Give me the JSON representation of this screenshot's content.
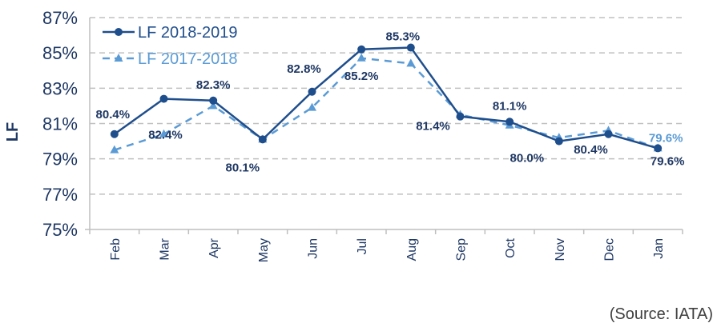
{
  "chart_data": {
    "type": "line",
    "title": "",
    "xlabel": "",
    "ylabel": "LF",
    "ylim": [
      75,
      87
    ],
    "yticks": [
      75,
      77,
      79,
      81,
      83,
      85,
      87
    ],
    "ytick_labels": [
      "75%",
      "77%",
      "79%",
      "81%",
      "83%",
      "85%",
      "87%"
    ],
    "grid": true,
    "legend_position": "top-left",
    "categories": [
      "Feb",
      "Mar",
      "Apr",
      "May",
      "Jun",
      "Jul",
      "Aug",
      "Sep",
      "Oct",
      "Nov",
      "Dec",
      "Jan"
    ],
    "series": [
      {
        "name": "LF 2018-2019",
        "color": "#1f4e8c",
        "style": "solid",
        "marker": "circle",
        "values": [
          80.4,
          82.4,
          82.3,
          80.1,
          82.8,
          85.2,
          85.3,
          81.4,
          81.1,
          80.0,
          80.4,
          79.6
        ]
      },
      {
        "name": "LF 2017-2018",
        "color": "#5b9bd5",
        "style": "dashed",
        "marker": "triangle",
        "values": [
          79.5,
          80.4,
          82.0,
          80.1,
          81.9,
          84.7,
          84.4,
          81.5,
          80.9,
          80.2,
          80.6,
          79.6
        ]
      }
    ],
    "annotations": [
      {
        "text": "80.4%",
        "category": "Feb",
        "series": "LF 2018-2019"
      },
      {
        "text": "82.4%",
        "category": "Mar",
        "series": "LF 2018-2019"
      },
      {
        "text": "82.3%",
        "category": "Apr",
        "series": "LF 2018-2019"
      },
      {
        "text": "80.1%",
        "category": "May",
        "series": "LF 2018-2019"
      },
      {
        "text": "82.8%",
        "category": "Jun",
        "series": "LF 2018-2019"
      },
      {
        "text": "85.2%",
        "category": "Jul",
        "series": "LF 2018-2019"
      },
      {
        "text": "85.3%",
        "category": "Aug",
        "series": "LF 2018-2019"
      },
      {
        "text": "81.4%",
        "category": "Sep",
        "series": "LF 2018-2019"
      },
      {
        "text": "81.1%",
        "category": "Oct",
        "series": "LF 2018-2019"
      },
      {
        "text": "80.0%",
        "category": "Nov",
        "series": "LF 2018-2019"
      },
      {
        "text": "80.4%",
        "category": "Dec",
        "series": "LF 2018-2019"
      },
      {
        "text": "79.6%",
        "category": "Jan",
        "series": "LF 2018-2019"
      },
      {
        "text": "79.6%",
        "category": "Jan",
        "series": "LF 2017-2018"
      }
    ]
  },
  "source": "(Source: IATA)"
}
